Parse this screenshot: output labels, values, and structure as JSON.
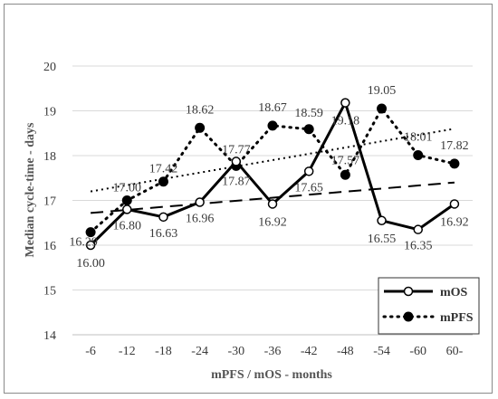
{
  "chart_data": {
    "type": "line",
    "xlabel": "mPFS / mOS - months",
    "ylabel": "Median cycle-time - days",
    "categories": [
      "-6",
      "-12",
      "-18",
      "-24",
      "-30",
      "-36",
      "-42",
      "-48",
      "-54",
      "-60",
      "60-"
    ],
    "ylim": [
      14,
      20
    ],
    "yticks": [
      14,
      15,
      16,
      17,
      18,
      19,
      20
    ],
    "grid": true,
    "legend_position": "bottom-right",
    "series": [
      {
        "name": "mOS",
        "style": "solid-open-circles",
        "values": [
          16.0,
          16.8,
          16.63,
          16.96,
          17.87,
          16.92,
          17.65,
          19.18,
          16.55,
          16.35,
          16.92
        ],
        "labels": [
          "16.00",
          "16.80",
          "16.63",
          "16.96",
          "17.87",
          "16.92",
          "17.65",
          "19.18",
          "16.55",
          "16.35",
          "16.92"
        ],
        "trendline": {
          "style": "dashed",
          "start": 16.72,
          "end": 17.4
        }
      },
      {
        "name": "mPFS",
        "style": "dotted-filled-circles",
        "values": [
          16.29,
          17.0,
          17.42,
          18.62,
          17.77,
          18.67,
          18.59,
          17.57,
          19.05,
          18.01,
          17.82
        ],
        "labels": [
          "16.29",
          "17.00",
          "17.42",
          "18.62",
          "17.77",
          "18.67",
          "18.59",
          "17.57",
          "19.05",
          "18.01",
          "17.82"
        ],
        "trendline": {
          "style": "dotted",
          "start": 17.2,
          "end": 18.6
        }
      }
    ],
    "colors": {
      "line": "#000000",
      "grid": "#d9d9d9",
      "text": "#3a3a3a"
    }
  }
}
